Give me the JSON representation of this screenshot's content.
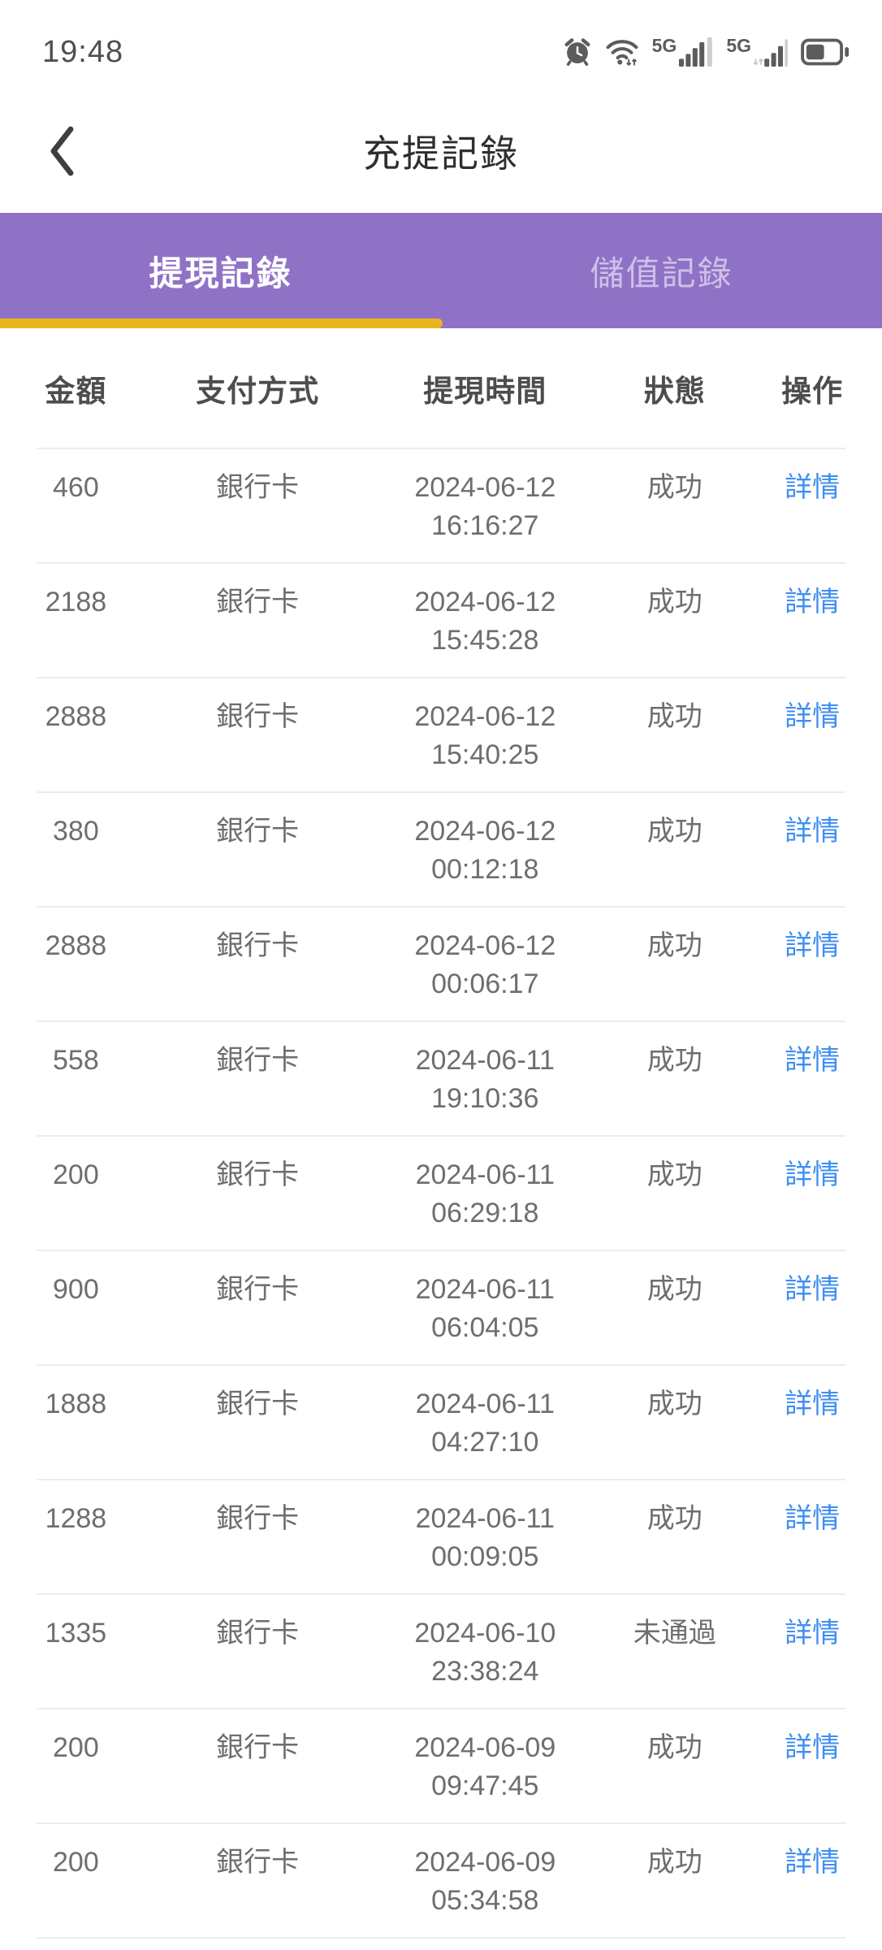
{
  "status_bar": {
    "time": "19:48",
    "network": "5G"
  },
  "header": {
    "title": "充提記錄"
  },
  "tabs": {
    "items": [
      {
        "label": "提現記錄",
        "active": true
      },
      {
        "label": "儲值記錄",
        "active": false
      }
    ]
  },
  "table": {
    "columns": [
      "金額",
      "支付方式",
      "提現時間",
      "狀態",
      "操作"
    ],
    "action_label": "詳情",
    "rows": [
      {
        "amount": "460",
        "method": "銀行卡",
        "date": "2024-06-12",
        "time": "16:16:27",
        "status": "成功"
      },
      {
        "amount": "2188",
        "method": "銀行卡",
        "date": "2024-06-12",
        "time": "15:45:28",
        "status": "成功"
      },
      {
        "amount": "2888",
        "method": "銀行卡",
        "date": "2024-06-12",
        "time": "15:40:25",
        "status": "成功"
      },
      {
        "amount": "380",
        "method": "銀行卡",
        "date": "2024-06-12",
        "time": "00:12:18",
        "status": "成功"
      },
      {
        "amount": "2888",
        "method": "銀行卡",
        "date": "2024-06-12",
        "time": "00:06:17",
        "status": "成功"
      },
      {
        "amount": "558",
        "method": "銀行卡",
        "date": "2024-06-11",
        "time": "19:10:36",
        "status": "成功"
      },
      {
        "amount": "200",
        "method": "銀行卡",
        "date": "2024-06-11",
        "time": "06:29:18",
        "status": "成功"
      },
      {
        "amount": "900",
        "method": "銀行卡",
        "date": "2024-06-11",
        "time": "06:04:05",
        "status": "成功"
      },
      {
        "amount": "1888",
        "method": "銀行卡",
        "date": "2024-06-11",
        "time": "04:27:10",
        "status": "成功"
      },
      {
        "amount": "1288",
        "method": "銀行卡",
        "date": "2024-06-11",
        "time": "00:09:05",
        "status": "成功"
      },
      {
        "amount": "1335",
        "method": "銀行卡",
        "date": "2024-06-10",
        "time": "23:38:24",
        "status": "未通過"
      },
      {
        "amount": "200",
        "method": "銀行卡",
        "date": "2024-06-09",
        "time": "09:47:45",
        "status": "成功"
      },
      {
        "amount": "200",
        "method": "銀行卡",
        "date": "2024-06-09",
        "time": "05:34:58",
        "status": "成功"
      }
    ]
  },
  "colors": {
    "purple": "#8f72c6",
    "tab_underline": "#eab41e",
    "link_blue": "#3f8ef2",
    "active_tab_text": "#ffffff",
    "inactive_tab_text": "#cfc0e8"
  }
}
